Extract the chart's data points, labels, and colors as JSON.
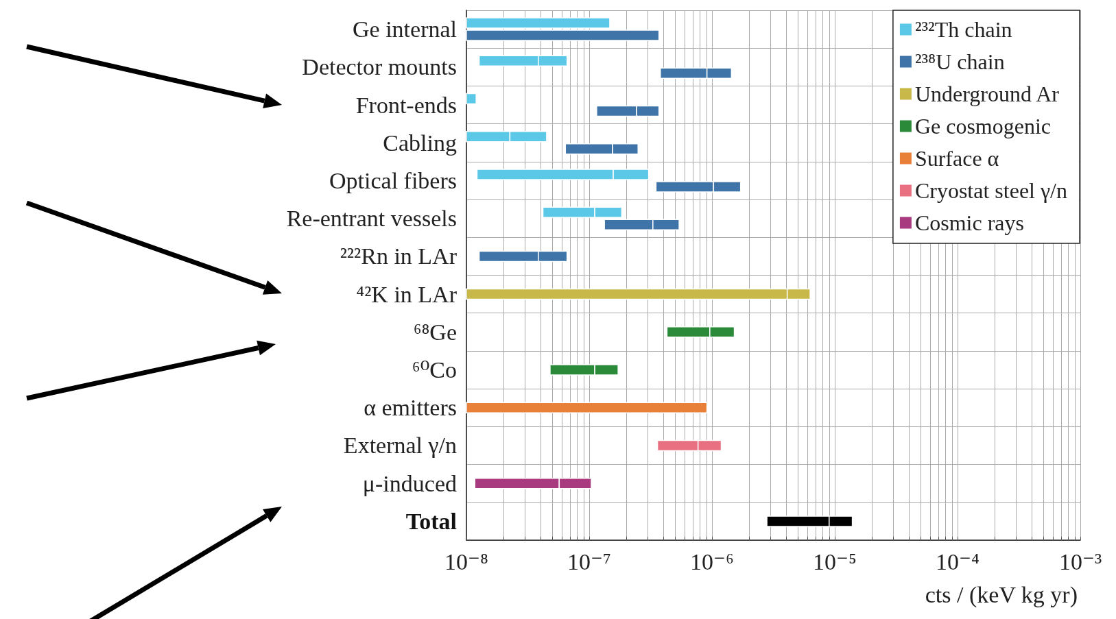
{
  "chart_data": {
    "type": "bar",
    "orientation": "horizontal",
    "log": "x",
    "grid": true,
    "legend": "top right",
    "xlabel": "cts / (keV kg yr)",
    "categories": [
      "Ge internal",
      "Detector mounts",
      "Front-ends",
      "Cabling",
      "Optical fibers",
      "Re-entrant vessels",
      "²²²Rn in LAr",
      "⁴²K in LAr",
      "⁶⁸Ge",
      "⁶⁰Co",
      "α emitters",
      "External γ/n",
      "μ-induced",
      "Total"
    ],
    "xlim": [
      1e-08,
      0.001
    ],
    "xticks": [
      {
        "value": 1e-08,
        "label": "10⁻⁸"
      },
      {
        "value": 1e-07,
        "label": "10⁻⁷"
      },
      {
        "value": 1e-06,
        "label": "10⁻⁶"
      },
      {
        "value": 1e-05,
        "label": "10⁻⁵"
      },
      {
        "value": 0.0001,
        "label": "10⁻⁴"
      },
      {
        "value": 0.001,
        "label": "10⁻³"
      }
    ],
    "series": [
      {
        "name": "²³²Th chain",
        "color": "#5bc8e8",
        "base": [
          1e-08,
          1.27e-08,
          1e-08,
          1e-08,
          1.22e-08,
          4.2e-08,
          null,
          null,
          null,
          null,
          null,
          null,
          null,
          null
        ],
        "values": [
          1.37e-07,
          2.58e-08,
          2e-09,
          1.26e-08,
          1.45e-07,
          6.9e-08,
          null,
          null,
          null,
          null,
          null,
          null,
          null,
          null
        ]
      },
      {
        "color": "#5bc8e8",
        "base": [
          null,
          3.85e-08,
          null,
          2.26e-08,
          1.57e-07,
          1.11e-07,
          null,
          null,
          null,
          null,
          null,
          null,
          null,
          null
        ],
        "values": [
          null,
          2.75e-08,
          null,
          2.24e-08,
          1.48e-07,
          7.3e-08,
          null,
          null,
          null,
          null,
          null,
          null,
          null,
          null
        ]
      },
      {
        "name": "²³⁸U chain",
        "color": "#3e74a8",
        "base": [
          1e-08,
          3.8e-07,
          1.15e-07,
          6.4e-08,
          3.5e-07,
          1.33e-07,
          1.27e-08,
          null,
          null,
          null,
          null,
          null,
          null,
          null
        ],
        "values": [
          3.6e-07,
          5.3e-07,
          1.28e-07,
          9.1e-08,
          6.8e-07,
          1.97e-07,
          2.58e-08,
          null,
          null,
          null,
          null,
          null,
          null,
          null
        ]
      },
      {
        "color": "#3e74a8",
        "base": [
          null,
          9.1e-07,
          2.43e-07,
          1.55e-07,
          1.03e-06,
          3.3e-07,
          3.85e-08,
          null,
          null,
          null,
          null,
          null,
          null,
          null
        ],
        "values": [
          null,
          5.3e-07,
          1.27e-07,
          9.5e-08,
          6.8e-07,
          2.1e-07,
          2.75e-08,
          null,
          null,
          null,
          null,
          null,
          null,
          null
        ]
      },
      {
        "name": "Underground Ar",
        "color": "#c8b84a",
        "base": [
          null,
          null,
          null,
          null,
          null,
          null,
          null,
          1e-08,
          null,
          null,
          null,
          null,
          null,
          null
        ],
        "values": [
          null,
          null,
          null,
          null,
          null,
          null,
          null,
          4.09e-06,
          null,
          null,
          null,
          null,
          null,
          null
        ]
      },
      {
        "color": "#c8b84a",
        "base": [
          null,
          null,
          null,
          null,
          null,
          null,
          null,
          4.1e-06,
          null,
          null,
          null,
          null,
          null,
          null
        ],
        "values": [
          null,
          null,
          null,
          null,
          null,
          null,
          null,
          2.2e-06,
          null,
          null,
          null,
          null,
          null,
          null
        ]
      },
      {
        "name": "Ge cosmogenic",
        "color": "#2a8a3a",
        "base": [
          null,
          null,
          null,
          null,
          null,
          null,
          null,
          null,
          4.3e-07,
          4.8e-08,
          null,
          null,
          null,
          null
        ],
        "values": [
          null,
          null,
          null,
          null,
          null,
          null,
          null,
          null,
          5.3e-07,
          6.3e-08,
          null,
          null,
          null,
          null
        ]
      },
      {
        "color": "#2a8a3a",
        "base": [
          null,
          null,
          null,
          null,
          null,
          null,
          null,
          null,
          9.6e-07,
          1.11e-07,
          null,
          null,
          null,
          null
        ],
        "values": [
          null,
          null,
          null,
          null,
          null,
          null,
          null,
          null,
          5.6e-07,
          6.1e-08,
          null,
          null,
          null,
          null
        ]
      },
      {
        "name": "Surface α",
        "color": "#e8803a",
        "base": [
          null,
          null,
          null,
          null,
          null,
          null,
          null,
          null,
          null,
          null,
          1e-08,
          null,
          null,
          null
        ],
        "values": [
          null,
          null,
          null,
          null,
          null,
          null,
          null,
          null,
          null,
          null,
          9e-07,
          null,
          null,
          null
        ]
      },
      {
        "name": "Cryostat steel γ/n",
        "color": "#e87080",
        "base": [
          null,
          null,
          null,
          null,
          null,
          null,
          null,
          null,
          null,
          null,
          null,
          3.6e-07,
          null,
          null
        ],
        "values": [
          null,
          null,
          null,
          null,
          null,
          null,
          null,
          null,
          null,
          null,
          null,
          4.1e-07,
          null,
          null
        ]
      },
      {
        "color": "#e87080",
        "base": [
          null,
          null,
          null,
          null,
          null,
          null,
          null,
          null,
          null,
          null,
          null,
          7.7e-07,
          null,
          null
        ],
        "values": [
          null,
          null,
          null,
          null,
          null,
          null,
          null,
          null,
          null,
          null,
          null,
          4.2e-07,
          null,
          null
        ]
      },
      {
        "name": "Cosmic rays",
        "color": "#a83a80",
        "base": [
          null,
          null,
          null,
          null,
          null,
          null,
          null,
          null,
          null,
          null,
          null,
          null,
          1.17e-08,
          null
        ],
        "values": [
          null,
          null,
          null,
          null,
          null,
          null,
          null,
          null,
          null,
          null,
          null,
          null,
          4.53e-08,
          null
        ]
      },
      {
        "color": "#a83a80",
        "base": [
          null,
          null,
          null,
          null,
          null,
          null,
          null,
          null,
          null,
          null,
          null,
          null,
          5.7e-08,
          null
        ],
        "values": [
          null,
          null,
          null,
          null,
          null,
          null,
          null,
          null,
          null,
          null,
          null,
          null,
          4.7e-08,
          null
        ]
      },
      {
        "color": "#000000",
        "base": [
          null,
          null,
          null,
          null,
          null,
          null,
          null,
          null,
          null,
          null,
          null,
          null,
          null,
          2.8e-06
        ],
        "values": [
          null,
          null,
          null,
          null,
          null,
          null,
          null,
          null,
          null,
          null,
          null,
          null,
          null,
          6.2e-06
        ]
      },
      {
        "color": "#000000",
        "base": [
          null,
          null,
          null,
          null,
          null,
          null,
          null,
          null,
          null,
          null,
          null,
          null,
          null,
          9e-06
        ],
        "values": [
          null,
          null,
          null,
          null,
          null,
          null,
          null,
          null,
          null,
          null,
          null,
          null,
          null,
          4.9e-06
        ]
      }
    ]
  }
}
